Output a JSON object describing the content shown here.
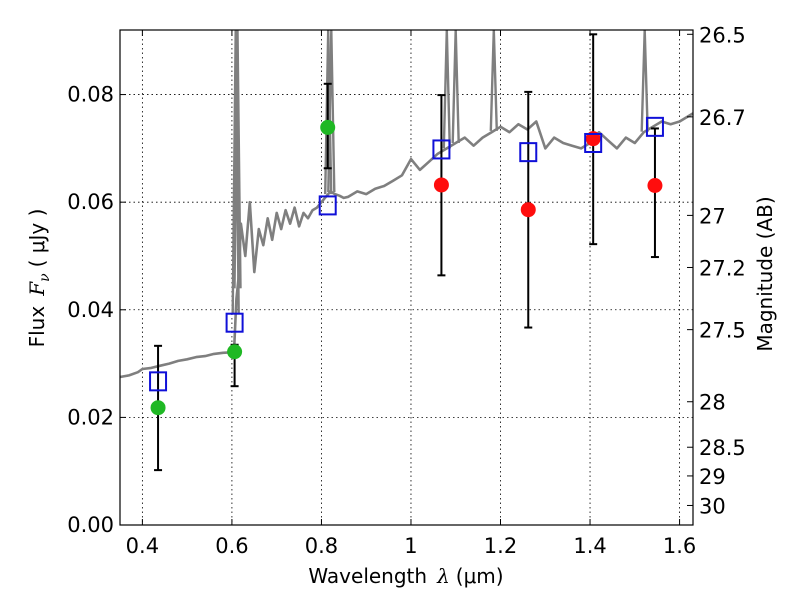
{
  "chart_data": {
    "type": "scatter",
    "title": "",
    "xlabel": "Wavelength",
    "xlabel_symbol": "λ",
    "xlabel_unit": "(μm)",
    "ylabel": "Flux",
    "ylabel_symbol": "F",
    "ylabel_subscript": "ν",
    "ylabel_unit": "( μJy )",
    "y2label": "Magnitude (AB)",
    "xlim": [
      0.35,
      1.63
    ],
    "ylim": [
      0.0,
      0.092
    ],
    "grid": true,
    "x_ticks": [
      0.4,
      0.6,
      0.8,
      1.0,
      1.2,
      1.4,
      1.6
    ],
    "x_tick_labels": [
      "0.4",
      "0.6",
      "0.8",
      "1",
      "1.2",
      "1.4",
      "1.6"
    ],
    "y_ticks": [
      0.0,
      0.02,
      0.04,
      0.06,
      0.08
    ],
    "y_tick_labels": [
      "0.00",
      "0.02",
      "0.04",
      "0.06",
      "0.08"
    ],
    "mag_ticks": [
      {
        "mag": 26.5,
        "label": "26.5"
      },
      {
        "mag": 26.7,
        "label": "26.7"
      },
      {
        "mag": 27.0,
        "label": "27"
      },
      {
        "mag": 27.2,
        "label": "27.2"
      },
      {
        "mag": 27.5,
        "label": "27.5"
      },
      {
        "mag": 28.0,
        "label": "28"
      },
      {
        "mag": 28.5,
        "label": "28.5"
      },
      {
        "mag": 29.0,
        "label": "29"
      },
      {
        "mag": 30.0,
        "label": "30"
      }
    ],
    "series": [
      {
        "name": "Observed (green)",
        "color": "#1fb824",
        "marker": "circle",
        "points": [
          {
            "x": 0.435,
            "y": 0.0218,
            "ylo": 0.0102,
            "yhi": 0.0333
          },
          {
            "x": 0.606,
            "y": 0.0322,
            "ylo": 0.0258,
            "yhi": 0.0335
          },
          {
            "x": 0.814,
            "y": 0.0739,
            "ylo": 0.0663,
            "yhi": 0.082
          }
        ]
      },
      {
        "name": "Observed (red)",
        "color": "#ff0d0d",
        "marker": "circle",
        "points": [
          {
            "x": 1.068,
            "y": 0.0632,
            "ylo": 0.0464,
            "yhi": 0.0799
          },
          {
            "x": 1.262,
            "y": 0.0586,
            "ylo": 0.0367,
            "yhi": 0.0805
          },
          {
            "x": 1.407,
            "y": 0.0718,
            "ylo": 0.0522,
            "yhi": 0.0912
          },
          {
            "x": 1.545,
            "y": 0.0631,
            "ylo": 0.0498,
            "yhi": 0.0737
          }
        ]
      },
      {
        "name": "Model photometry",
        "color": "#1010d8",
        "marker": "square-open",
        "points": [
          {
            "x": 0.435,
            "y": 0.0267
          },
          {
            "x": 0.606,
            "y": 0.0376
          },
          {
            "x": 0.814,
            "y": 0.0594
          },
          {
            "x": 1.068,
            "y": 0.0698
          },
          {
            "x": 1.262,
            "y": 0.0693
          },
          {
            "x": 1.407,
            "y": 0.071
          },
          {
            "x": 1.545,
            "y": 0.074
          }
        ]
      }
    ],
    "model_spectrum": {
      "name": "Model spectrum",
      "color": "#7f7f7f",
      "x": [
        0.35,
        0.37,
        0.39,
        0.4,
        0.42,
        0.44,
        0.46,
        0.48,
        0.5,
        0.52,
        0.54,
        0.56,
        0.58,
        0.6,
        0.605,
        0.61,
        0.615,
        0.62,
        0.63,
        0.64,
        0.65,
        0.66,
        0.67,
        0.68,
        0.69,
        0.7,
        0.71,
        0.72,
        0.73,
        0.74,
        0.75,
        0.76,
        0.77,
        0.78,
        0.79,
        0.8,
        0.81,
        0.82,
        0.83,
        0.84,
        0.85,
        0.86,
        0.88,
        0.9,
        0.92,
        0.94,
        0.96,
        0.98,
        1.0,
        1.02,
        1.04,
        1.06,
        1.08,
        1.1,
        1.12,
        1.14,
        1.16,
        1.18,
        1.2,
        1.22,
        1.24,
        1.26,
        1.28,
        1.3,
        1.32,
        1.34,
        1.36,
        1.38,
        1.4,
        1.42,
        1.44,
        1.46,
        1.48,
        1.5,
        1.52,
        1.54,
        1.56,
        1.58,
        1.6,
        1.63
      ],
      "y": [
        0.0275,
        0.0278,
        0.0284,
        0.029,
        0.0292,
        0.0296,
        0.03,
        0.0305,
        0.0308,
        0.0312,
        0.0314,
        0.0318,
        0.032,
        0.0321,
        0.033,
        0.042,
        0.046,
        0.056,
        0.05,
        0.06,
        0.047,
        0.055,
        0.052,
        0.057,
        0.053,
        0.058,
        0.055,
        0.0585,
        0.056,
        0.059,
        0.0555,
        0.058,
        0.057,
        0.0585,
        0.059,
        0.06,
        0.061,
        0.062,
        0.0615,
        0.0612,
        0.0608,
        0.061,
        0.062,
        0.0615,
        0.0625,
        0.063,
        0.064,
        0.065,
        0.068,
        0.066,
        0.0675,
        0.069,
        0.07,
        0.071,
        0.072,
        0.0705,
        0.072,
        0.073,
        0.074,
        0.073,
        0.0745,
        0.0735,
        0.075,
        0.07,
        0.072,
        0.071,
        0.0705,
        0.07,
        0.071,
        0.073,
        0.0715,
        0.07,
        0.072,
        0.071,
        0.073,
        0.074,
        0.075,
        0.0745,
        0.075,
        0.0765
      ]
    },
    "emission_lines": [
      {
        "x": 0.6085,
        "peak": 0.092
      },
      {
        "x": 0.6125,
        "peak": 0.092
      },
      {
        "x": 0.815,
        "peak": 0.092
      },
      {
        "x": 0.822,
        "peak": 0.092
      },
      {
        "x": 1.08,
        "peak": 0.092
      },
      {
        "x": 1.1,
        "peak": 0.092
      },
      {
        "x": 1.185,
        "peak": 0.092
      },
      {
        "x": 1.522,
        "peak": 0.092
      }
    ]
  }
}
